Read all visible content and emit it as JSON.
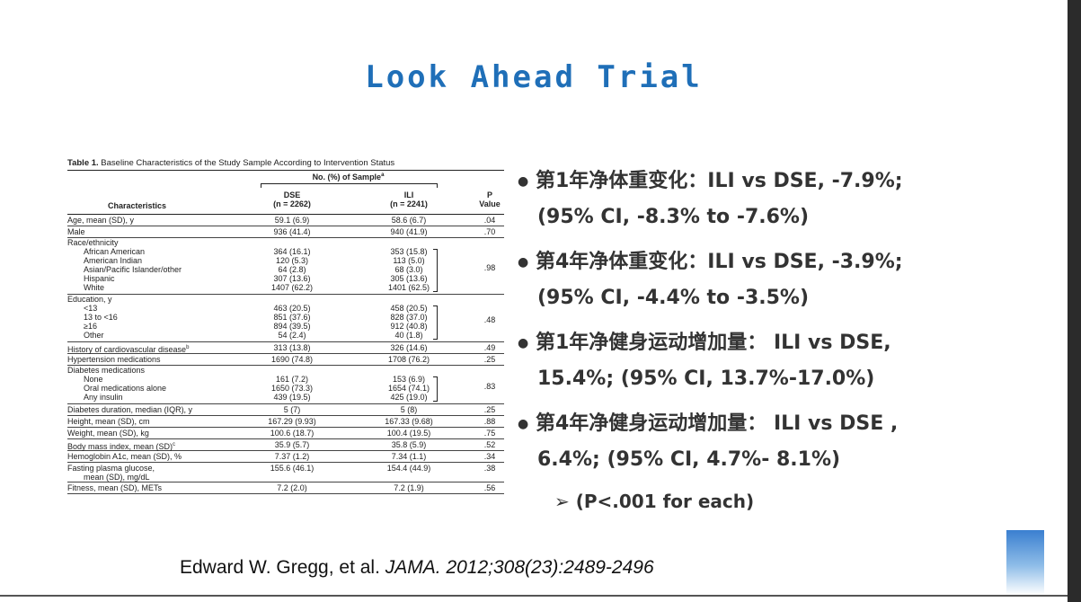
{
  "title": "Look Ahead Trial",
  "table": {
    "caption_bold": "Table 1.",
    "caption_rest": " Baseline Characteristics of the Study Sample According to Intervention Status",
    "span_header": "No. (%) of Sample",
    "span_sup": "a",
    "col0": "Characteristics",
    "col1_a": "DSE",
    "col1_b": "(n = 2262)",
    "col2_a": "ILI",
    "col2_b": "(n = 2241)",
    "col3_a": "P",
    "col3_b": "Value",
    "rows": [
      {
        "label": "Age, mean (SD), y",
        "v1": "59.1 (6.9)",
        "v2": "58.6 (6.7)",
        "p": ".04"
      },
      {
        "label": "Male",
        "v1": "936 (41.4)",
        "v2": "940 (41.9)",
        "p": ".70"
      },
      {
        "label": "Race/ethnicity",
        "p": ".98",
        "subs": [
          {
            "label": "African American",
            "v1": "364 (16.1)",
            "v2": "353 (15.8)"
          },
          {
            "label": "American Indian",
            "v1": "120 (5.3)",
            "v2": "113 (5.0)"
          },
          {
            "label": "Asian/Pacific Islander/other",
            "v1": "64 (2.8)",
            "v2": "68 (3.0)"
          },
          {
            "label": "Hispanic",
            "v1": "307 (13.6)",
            "v2": "305 (13.6)"
          },
          {
            "label": "White",
            "v1": "1407 (62.2)",
            "v2": "1401 (62.5)"
          }
        ]
      },
      {
        "label": "Education, y",
        "p": ".48",
        "subs": [
          {
            "label": "<13",
            "v1": "463 (20.5)",
            "v2": "458 (20.5)"
          },
          {
            "label": "13 to <16",
            "v1": "851 (37.6)",
            "v2": "828 (37.0)"
          },
          {
            "label": "≥16",
            "v1": "894 (39.5)",
            "v2": "912 (40.8)"
          },
          {
            "label": "Other",
            "v1": "54 (2.4)",
            "v2": "40 (1.8)"
          }
        ]
      },
      {
        "label": "History of cardiovascular disease",
        "sup": "b",
        "v1": "313 (13.8)",
        "v2": "326 (14.6)",
        "p": ".49"
      },
      {
        "label": "Hypertension medications",
        "v1": "1690 (74.8)",
        "v2": "1708 (76.2)",
        "p": ".25"
      },
      {
        "label": "Diabetes medications",
        "p": ".83",
        "subs": [
          {
            "label": "None",
            "v1": "161 (7.2)",
            "v2": "153 (6.9)"
          },
          {
            "label": "Oral medications alone",
            "v1": "1650 (73.3)",
            "v2": "1654 (74.1)"
          },
          {
            "label": "Any insulin",
            "v1": "439 (19.5)",
            "v2": "425 (19.0)"
          }
        ]
      },
      {
        "label": "Diabetes duration, median (IQR), y",
        "v1": "5 (7)",
        "v2": "5 (8)",
        "p": ".25"
      },
      {
        "label": "Height, mean (SD), cm",
        "v1": "167.29 (9.93)",
        "v2": "167.33 (9.68)",
        "p": ".88"
      },
      {
        "label": "Weight, mean (SD), kg",
        "v1": "100.6 (18.7)",
        "v2": "100.4 (19.5)",
        "p": ".75"
      },
      {
        "label": "Body mass index, mean (SD)",
        "sup": "c",
        "v1": "35.9 (5.7)",
        "v2": "35.8 (5.9)",
        "p": ".52"
      },
      {
        "label": "Hemoglobin A1c, mean (SD), %",
        "v1": "7.37 (1.2)",
        "v2": "7.34 (1.1)",
        "p": ".34"
      },
      {
        "label": "Fasting plasma glucose,",
        "label2": "mean (SD), mg/dL",
        "v1": "155.6 (46.1)",
        "v2": "154.4 (44.9)",
        "p": ".38"
      },
      {
        "label": "Fitness, mean (SD), METs",
        "v1": "7.2 (2.0)",
        "v2": "7.2 (1.9)",
        "p": ".56"
      }
    ]
  },
  "bullets": [
    {
      "line1": "第1年净体重变化：ILI  vs  DSE, -7.9%;",
      "line2": "(95% CI, -8.3% to -7.6%)"
    },
    {
      "line1": "第4年净体重变化：ILI  vs  DSE, -3.9%;",
      "line2": "(95% CI, -4.4% to -3.5%)"
    },
    {
      "line1": "第1年净健身运动增加量： ILI  vs  DSE,",
      "line2": "15.4%;  (95% CI, 13.7%-17.0%)"
    },
    {
      "line1": "第4年净健身运动增加量： ILI  vs  DSE ,",
      "line2": "6.4%;  (95% CI, 4.7%- 8.1%)"
    }
  ],
  "p_note": "➢  (P<.001 for each)",
  "citation": {
    "authors": "Edward W. Gregg, et al. ",
    "journal": "JAMA. 2012;308(23):2489-2496"
  }
}
